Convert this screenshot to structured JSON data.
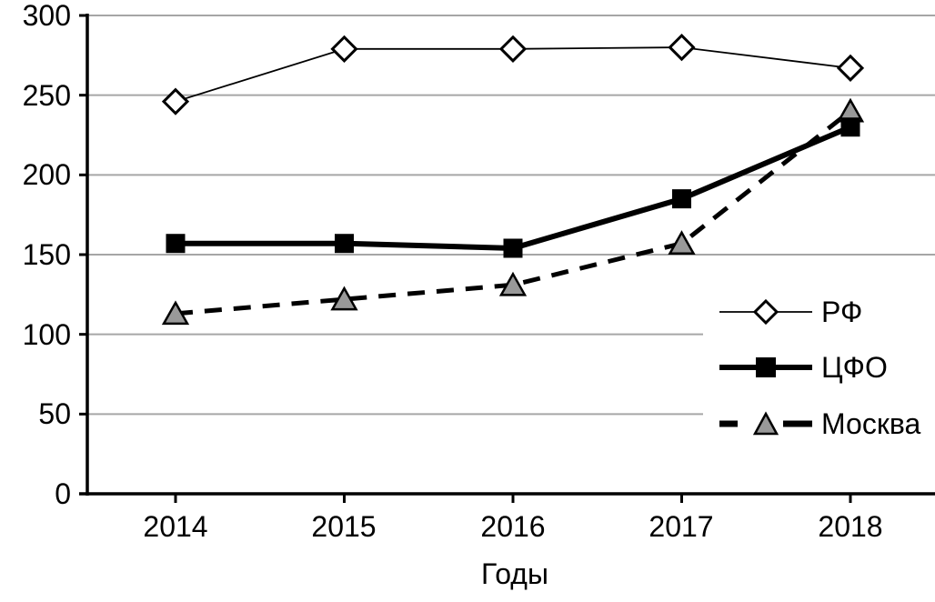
{
  "chart_data": {
    "type": "line",
    "title": "",
    "xlabel": "Годы",
    "ylabel": "",
    "categories": [
      "2014",
      "2015",
      "2016",
      "2017",
      "2018"
    ],
    "series": [
      {
        "name": "РФ",
        "values": [
          246,
          279,
          279,
          280,
          267
        ],
        "marker": "diamond",
        "marker_fill": "#ffffff",
        "line_style": "solid-thin",
        "color": "#000000"
      },
      {
        "name": "ЦФО",
        "values": [
          157,
          157,
          154,
          185,
          230
        ],
        "marker": "square",
        "marker_fill": "#000000",
        "line_style": "solid-thick",
        "color": "#000000"
      },
      {
        "name": "Москва",
        "values": [
          113,
          122,
          131,
          157,
          240
        ],
        "marker": "triangle",
        "marker_fill": "#999999",
        "line_style": "dashed",
        "color": "#000000"
      }
    ],
    "ylim": [
      0,
      300
    ],
    "yticks": [
      0,
      50,
      100,
      150,
      200,
      250,
      300
    ],
    "grid": "horizontal",
    "gridline_color": "#a6a6a6",
    "axis_color": "#000000",
    "legend_position": "middle-right-overlay"
  }
}
